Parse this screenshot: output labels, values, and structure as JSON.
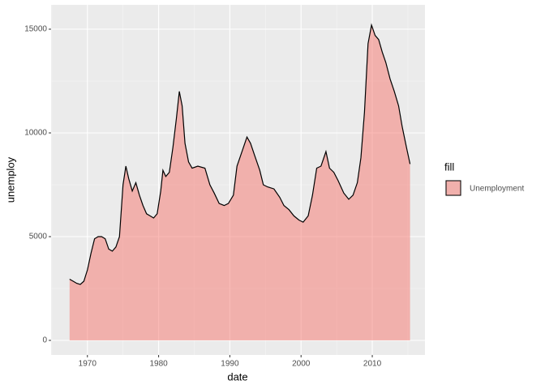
{
  "chart_data": {
    "type": "area",
    "xlabel": "date",
    "ylabel": "unemploy",
    "legend_title": "fill",
    "legend_position": "right",
    "series": [
      {
        "name": "Unemployment",
        "color": "#F8766D",
        "opacity": 0.5,
        "line_color": "#000000",
        "x": [
          1967.5,
          1968,
          1968.5,
          1969,
          1969.5,
          1970,
          1970.5,
          1971,
          1971.5,
          1972,
          1972.5,
          1973,
          1973.5,
          1974,
          1974.5,
          1975,
          1975.4,
          1975.8,
          1976.3,
          1976.8,
          1977.3,
          1977.8,
          1978.3,
          1978.8,
          1979.3,
          1979.8,
          1980.3,
          1980.6,
          1981,
          1981.5,
          1982,
          1982.5,
          1982.9,
          1983.3,
          1983.7,
          1984.2,
          1984.7,
          1985.5,
          1986.5,
          1987.2,
          1987.8,
          1988.5,
          1989.2,
          1989.8,
          1990.5,
          1991,
          1991.6,
          1992.4,
          1992.9,
          1993.5,
          1994.2,
          1994.7,
          1995.3,
          1996.2,
          1997,
          1997.6,
          1998.3,
          1999,
          1999.7,
          2000.3,
          2001,
          2001.6,
          2002.2,
          2002.8,
          2003.5,
          2004,
          2004.6,
          2005.2,
          2006,
          2006.7,
          2007.3,
          2007.9,
          2008.4,
          2008.9,
          2009.4,
          2009.9,
          2010.4,
          2010.9,
          2011.4,
          2011.9,
          2012.5,
          2013.1,
          2013.7,
          2014.2,
          2014.8,
          2015.3
        ],
        "values": [
          2950,
          2850,
          2750,
          2700,
          2850,
          3400,
          4200,
          4900,
          5000,
          5000,
          4900,
          4400,
          4300,
          4500,
          5000,
          7500,
          8400,
          7800,
          7200,
          7600,
          7000,
          6500,
          6100,
          6000,
          5900,
          6100,
          7200,
          8200,
          7900,
          8100,
          9300,
          10700,
          12000,
          11300,
          9500,
          8600,
          8300,
          8400,
          8300,
          7500,
          7100,
          6600,
          6500,
          6600,
          7000,
          8400,
          9000,
          9800,
          9500,
          8900,
          8200,
          7500,
          7400,
          7300,
          6900,
          6500,
          6300,
          6000,
          5800,
          5700,
          6000,
          7000,
          8300,
          8400,
          9100,
          8300,
          8100,
          7700,
          7100,
          6800,
          7000,
          7600,
          8800,
          11000,
          14300,
          15200,
          14700,
          14500,
          13900,
          13400,
          12600,
          12000,
          11300,
          10300,
          9300,
          8500
        ]
      }
    ],
    "xlim": [
      1964.9,
      2017.4
    ],
    "xticks": [
      1970,
      1980,
      1990,
      2000,
      2010
    ],
    "xminorticks": [
      1965,
      1975,
      1985,
      1995,
      2005,
      2015
    ],
    "ylim": [
      -703,
      16172
    ],
    "yticks": [
      0,
      5000,
      10000,
      15000
    ],
    "yminorticks": [
      2500,
      7500,
      12500
    ],
    "grid": true,
    "panel_color": "#EBEBEB"
  }
}
